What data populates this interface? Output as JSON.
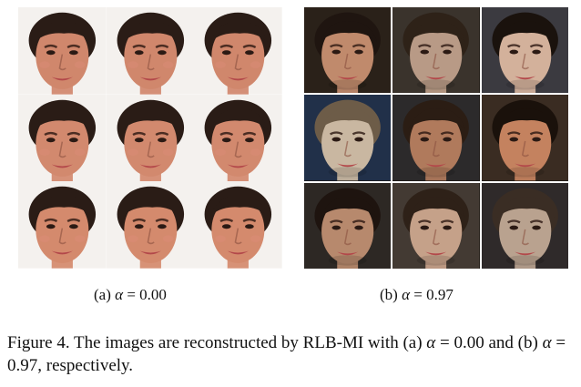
{
  "panels": [
    {
      "id": "a",
      "subcaption_prefix": "(a)",
      "alpha_symbol": "α",
      "alpha_expr": "= 0.00",
      "rows": 3,
      "cols": 3,
      "faces": [
        {
          "skin": "#d0876c",
          "hair": "#2a1c16",
          "bg": "#f4f1ee"
        },
        {
          "skin": "#d0876c",
          "hair": "#2a1c16",
          "bg": "#f4f1ee"
        },
        {
          "skin": "#d0876c",
          "hair": "#2a1c16",
          "bg": "#f4f1ee"
        },
        {
          "skin": "#d2896e",
          "hair": "#2a1c16",
          "bg": "#f4f1ee"
        },
        {
          "skin": "#d2896e",
          "hair": "#2a1c16",
          "bg": "#f4f1ee"
        },
        {
          "skin": "#d2896e",
          "hair": "#2a1c16",
          "bg": "#f4f1ee"
        },
        {
          "skin": "#d48a6d",
          "hair": "#2a1c16",
          "bg": "#f4f1ee"
        },
        {
          "skin": "#d48a6d",
          "hair": "#2a1c16",
          "bg": "#f4f1ee"
        },
        {
          "skin": "#d48a6d",
          "hair": "#2a1c16",
          "bg": "#f4f1ee"
        }
      ]
    },
    {
      "id": "b",
      "subcaption_prefix": "(b)",
      "alpha_symbol": "α",
      "alpha_expr": "= 0.97",
      "rows": 3,
      "cols": 3,
      "faces": [
        {
          "skin": "#c08a6c",
          "hair": "#1f1510",
          "bg": "#2a2119"
        },
        {
          "skin": "#b89a86",
          "hair": "#2e2218",
          "bg": "#3a332c"
        },
        {
          "skin": "#d3b19b",
          "hair": "#1a120d",
          "bg": "#3b3a40"
        },
        {
          "skin": "#c9b7a1",
          "hair": "#6d5c48",
          "bg": "#213049"
        },
        {
          "skin": "#b07a5c",
          "hair": "#2b1d14",
          "bg": "#2c2a2b"
        },
        {
          "skin": "#c4825f",
          "hair": "#1a110b",
          "bg": "#3a2c22"
        },
        {
          "skin": "#b7896d",
          "hair": "#1e140f",
          "bg": "#2d2824"
        },
        {
          "skin": "#c5a189",
          "hair": "#2e2118",
          "bg": "#433a33"
        },
        {
          "skin": "#b9a28f",
          "hair": "#3a2d24",
          "bg": "#2f2a2a"
        }
      ]
    }
  ],
  "caption": {
    "label": "Figure 4.",
    "text_1": "The images are reconstructed by RLB-MI with (a)",
    "alpha_symbol": "α",
    "eq_a": "=",
    "val_a": "0.00 and (b)",
    "eq_b": "= 0.97, respectively."
  }
}
